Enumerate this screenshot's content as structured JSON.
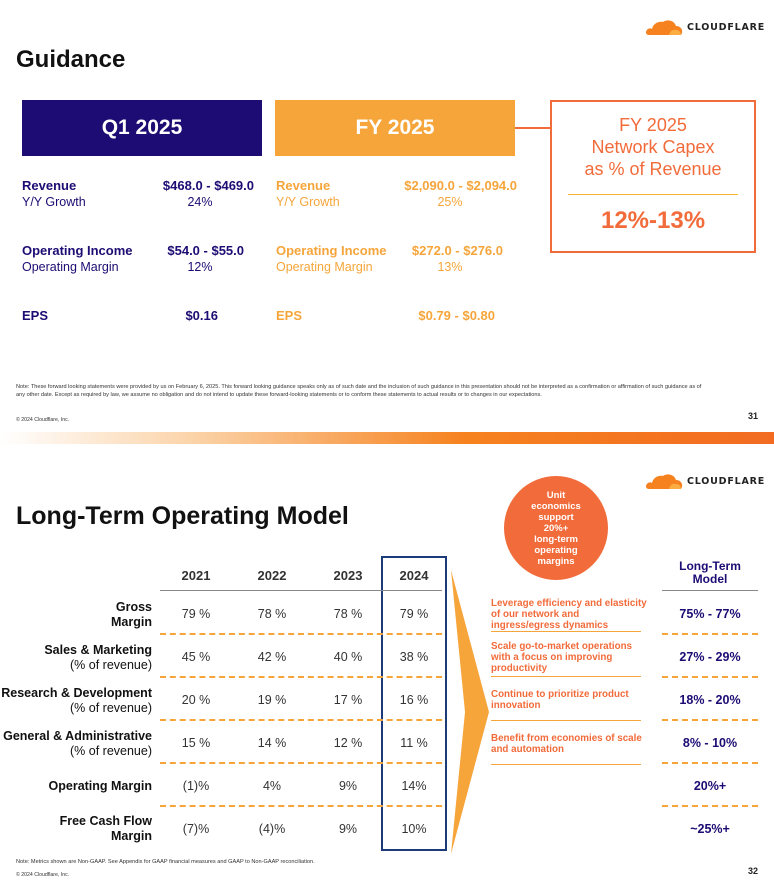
{
  "brand": {
    "logo_text": "CLOUDFLARE",
    "orange": "#f6821f",
    "navy": "#1c0c73",
    "light_orange": "#f6a53a",
    "red_orange": "#f26b3a",
    "logo_icon": "cloud-icon"
  },
  "slide1": {
    "title": "Guidance",
    "q1_header": "Q1 2025",
    "fy_header": "FY 2025",
    "capex": {
      "title_line1": "FY 2025",
      "title_line2": "Network Capex",
      "title_line3": "as % of Revenue",
      "value": "12%-13%"
    },
    "q1": {
      "revenue_label": "Revenue",
      "revenue_value": "$468.0 - $469.0",
      "growth_label": "Y/Y Growth",
      "growth_value": "24%",
      "opinc_label": "Operating Income",
      "opinc_value": "$54.0 - $55.0",
      "margin_label": "Operating Margin",
      "margin_value": "12%",
      "eps_label": "EPS",
      "eps_value": "$0.16"
    },
    "fy": {
      "revenue_label": "Revenue",
      "revenue_value": "$2,090.0 - $2,094.0",
      "growth_label": "Y/Y Growth",
      "growth_value": "25%",
      "opinc_label": "Operating Income",
      "opinc_value": "$272.0 - $276.0",
      "margin_label": "Operating Margin",
      "margin_value": "13%",
      "eps_label": "EPS",
      "eps_value": "$0.79 - $0.80"
    },
    "note": "Note: These forward looking statements were provided by us on February 6, 2025. This forward looking guidance speaks only as of such date and the inclusion of such guidance in this presentation should not be interpreted as a confirmation or affirmation of such guidance as of any other date. Except as required by law, we assume no obligation and do not intend to update these forward-looking statements or to conform these statements to actual results or to changes in our expectations.",
    "copyright": "© 2024 Cloudflare, Inc.",
    "page": "31"
  },
  "slide2": {
    "title": "Long-Term Operating Model",
    "circle_text": [
      "Unit",
      "economics",
      "support",
      "20%+",
      "long-term",
      "operating",
      "margins"
    ],
    "years": [
      "2021",
      "2022",
      "2023",
      "2024"
    ],
    "rows": [
      {
        "label_bold": "Gross",
        "label_bold2": "Margin",
        "label_sub": "",
        "values": [
          "79 %",
          "78 %",
          "78 %",
          "79 %"
        ],
        "target": "75% - 77%"
      },
      {
        "label_bold": "Sales & Marketing",
        "label_bold2": "",
        "label_sub": "(% of revenue)",
        "values": [
          "45 %",
          "42 %",
          "40 %",
          "38 %"
        ],
        "target": "27% - 29%"
      },
      {
        "label_bold": "Research & Development",
        "label_bold2": "",
        "label_sub": "(% of revenue)",
        "values": [
          "20 %",
          "19 %",
          "17 %",
          "16 %"
        ],
        "target": "18% - 20%"
      },
      {
        "label_bold": "General & Administrative",
        "label_bold2": "",
        "label_sub": "(% of revenue)",
        "values": [
          "15 %",
          "14 %",
          "12 %",
          "11 %"
        ],
        "target": "8% - 10%"
      },
      {
        "label_bold": "Operating Margin",
        "label_bold2": "",
        "label_sub": "",
        "values": [
          "(1)%",
          "4%",
          "9%",
          "14%"
        ],
        "target": "20%+"
      },
      {
        "label_bold": "Free Cash Flow",
        "label_bold2": "Margin",
        "label_sub": "",
        "values": [
          "(7)%",
          "(4)%",
          "9%",
          "10%"
        ],
        "target": "~25%+"
      }
    ],
    "drivers": [
      "Leverage efficiency and elasticity of our network and ingress/egress dynamics",
      "Scale go-to-market operations with a focus on improving productivity",
      "Continue to prioritize product innovation",
      "Benefit from economies of scale and automation"
    ],
    "lt_header_line1": "Long-Term",
    "lt_header_line2": "Model",
    "note": "Note: Metrics shown are Non-GAAP. See Appendix for GAAP financial measures and GAAP to Non-GAAP reconciliation.",
    "copyright": "© 2024 Cloudflare, Inc.",
    "page": "32"
  }
}
